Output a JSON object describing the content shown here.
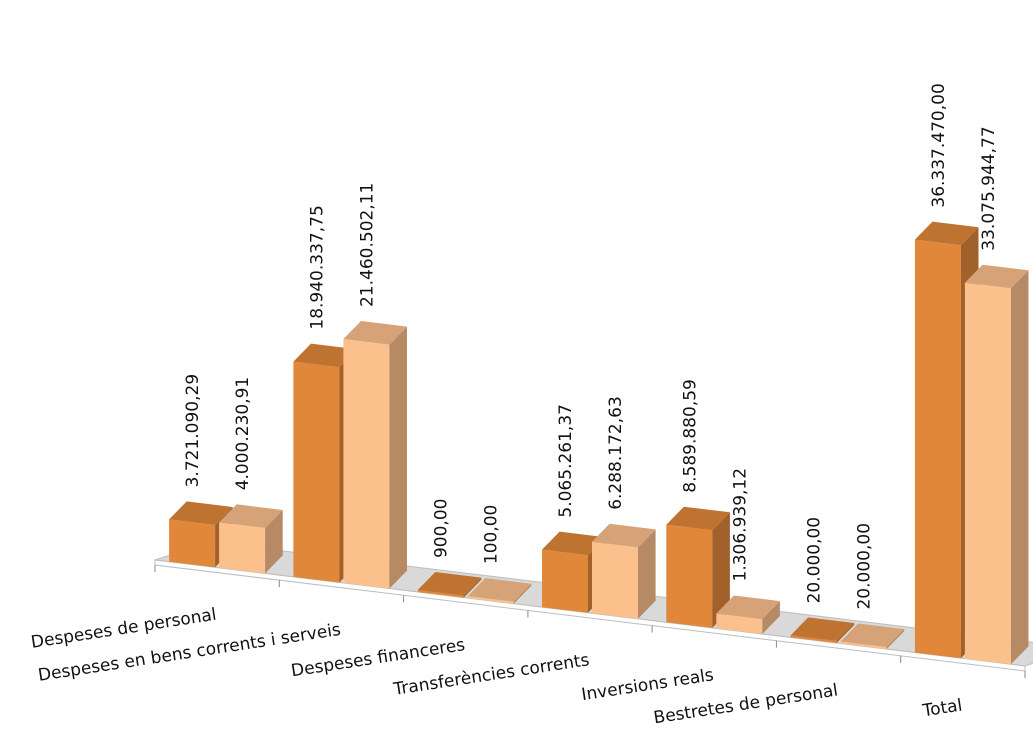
{
  "chart_data": {
    "type": "bar",
    "style": "3d-clustered-column",
    "categories": [
      "Despeses de personal",
      "Despeses en bens corrents i serveis",
      "Despeses financeres",
      "Transferències corrents",
      "Inversions reals",
      "Bestretes de personal",
      "Total"
    ],
    "series": [
      {
        "color": "#E0873A",
        "values": [
          3721090.29,
          18940337.75,
          900.0,
          5065261.37,
          8589880.59,
          20000.0,
          36337470.0
        ],
        "value_labels": [
          "3.721.090,29",
          "18.940.337,75",
          "900,00",
          "5.065.261,37",
          "8.589.880,59",
          "20.000,00",
          "36.337.470,00"
        ]
      },
      {
        "color": "#FBC08C",
        "values": [
          4000230.91,
          21460502.11,
          100.0,
          6288172.63,
          1306939.12,
          20000.0,
          33075944.77
        ],
        "value_labels": [
          "4.000.230,91",
          "21.460.502,11",
          "100,00",
          "6.288.172,63",
          "1.306.939,12",
          "20.000,00",
          "33.075.944,77"
        ]
      }
    ],
    "title": "",
    "xlabel": "",
    "ylabel": "",
    "legend": "none",
    "grid": false
  }
}
